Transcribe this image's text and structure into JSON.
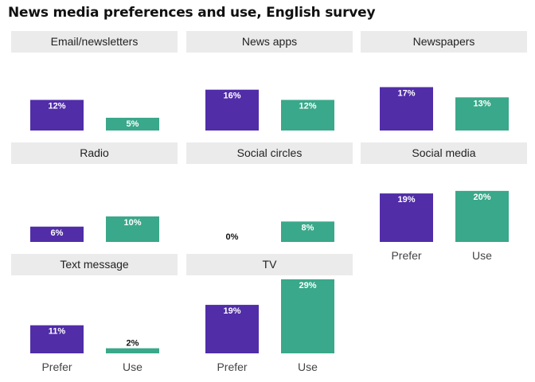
{
  "title": "News media preferences and use, English survey",
  "colors": {
    "Prefer": "#512da8",
    "Use": "#3aa88a",
    "strip": "#ebebeb"
  },
  "chart_data": {
    "type": "bar",
    "title": "News media preferences and use, English survey",
    "categories": [
      "Prefer",
      "Use"
    ],
    "value_format": "percent",
    "ylim": [
      0,
      30
    ],
    "facets": [
      {
        "name": "Email/newsletters",
        "values": [
          12,
          5
        ]
      },
      {
        "name": "News apps",
        "values": [
          16,
          12
        ]
      },
      {
        "name": "Newspapers",
        "values": [
          17,
          13
        ]
      },
      {
        "name": "Radio",
        "values": [
          6,
          10
        ]
      },
      {
        "name": "Social circles",
        "values": [
          0,
          8
        ]
      },
      {
        "name": "Social media",
        "values": [
          19,
          20
        ]
      },
      {
        "name": "Text message",
        "values": [
          11,
          2
        ]
      },
      {
        "name": "TV",
        "values": [
          19,
          29
        ]
      }
    ]
  }
}
